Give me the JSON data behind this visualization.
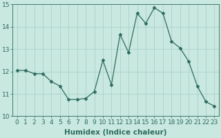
{
  "x": [
    0,
    1,
    2,
    3,
    4,
    5,
    6,
    7,
    8,
    9,
    10,
    11,
    12,
    13,
    14,
    15,
    16,
    17,
    18,
    19,
    20,
    21,
    22,
    23
  ],
  "y": [
    12.05,
    12.05,
    11.9,
    11.9,
    11.55,
    11.35,
    10.75,
    10.75,
    10.8,
    11.1,
    12.5,
    11.4,
    13.65,
    12.85,
    14.6,
    14.15,
    14.85,
    14.6,
    13.35,
    13.05,
    12.45,
    11.35,
    10.65,
    10.45
  ],
  "line_color": "#2e6b5e",
  "marker": "D",
  "marker_size": 2.5,
  "bg_color": "#c8e8e0",
  "grid_color": "#b0d4cc",
  "tick_color": "#2e6b5e",
  "label_color": "#2e6b5e",
  "xlabel": "Humidex (Indice chaleur)",
  "ylim": [
    10,
    15
  ],
  "xlim": [
    -0.5,
    23.5
  ],
  "yticks": [
    10,
    11,
    12,
    13,
    14,
    15
  ],
  "xticks": [
    0,
    1,
    2,
    3,
    4,
    5,
    6,
    7,
    8,
    9,
    10,
    11,
    12,
    13,
    14,
    15,
    16,
    17,
    18,
    19,
    20,
    21,
    22,
    23
  ],
  "xtick_labels": [
    "0",
    "1",
    "2",
    "3",
    "4",
    "5",
    "6",
    "7",
    "8",
    "9",
    "10",
    "11",
    "12",
    "13",
    "14",
    "15",
    "16",
    "17",
    "18",
    "19",
    "20",
    "21",
    "22",
    "23"
  ],
  "font_size": 6.5,
  "xlabel_fontsize": 7.5
}
